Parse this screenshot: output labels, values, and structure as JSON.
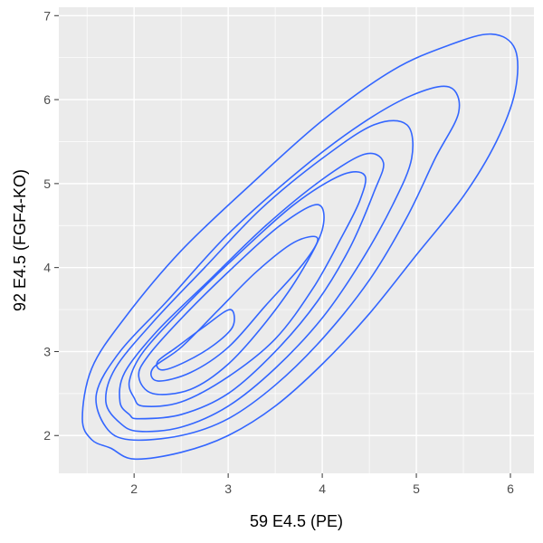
{
  "chart_data": {
    "type": "contour",
    "title": "",
    "xlabel": "59 E4.5 (PE)",
    "ylabel": "92 E4.5 (FGF4-KO)",
    "xlim": [
      1.2,
      6.25
    ],
    "ylim": [
      1.55,
      7.1
    ],
    "x_ticks": [
      2,
      3,
      4,
      5,
      6
    ],
    "y_ticks": [
      2,
      3,
      4,
      5,
      6,
      7
    ],
    "x_tick_labels": [
      "2",
      "3",
      "4",
      "5",
      "6"
    ],
    "y_tick_labels": [
      "2",
      "3",
      "4",
      "5",
      "6",
      "7"
    ],
    "grid": true,
    "legend": "none",
    "colors": {
      "panel": "#ebebeb",
      "grid": "#ffffff",
      "line": "#3366ff",
      "tick_text": "#4d4d4d",
      "title_text": "#000000"
    },
    "contours": [
      {
        "level": 1,
        "points": [
          [
            1.75,
            1.85
          ],
          [
            2.0,
            1.72
          ],
          [
            2.5,
            1.8
          ],
          [
            3.0,
            2.0
          ],
          [
            3.5,
            2.35
          ],
          [
            4.0,
            2.85
          ],
          [
            4.5,
            3.45
          ],
          [
            5.0,
            4.15
          ],
          [
            5.5,
            4.85
          ],
          [
            5.85,
            5.5
          ],
          [
            6.05,
            6.1
          ],
          [
            6.05,
            6.6
          ],
          [
            5.8,
            6.78
          ],
          [
            5.35,
            6.65
          ],
          [
            4.75,
            6.35
          ],
          [
            4.0,
            5.75
          ],
          [
            3.25,
            5.0
          ],
          [
            2.5,
            4.2
          ],
          [
            1.9,
            3.4
          ],
          [
            1.55,
            2.8
          ],
          [
            1.45,
            2.2
          ],
          [
            1.55,
            1.95
          ]
        ]
      },
      {
        "level": 2,
        "points": [
          [
            1.95,
            1.95
          ],
          [
            2.5,
            2.0
          ],
          [
            3.0,
            2.2
          ],
          [
            3.5,
            2.6
          ],
          [
            4.0,
            3.15
          ],
          [
            4.5,
            3.85
          ],
          [
            4.9,
            4.6
          ],
          [
            5.2,
            5.3
          ],
          [
            5.45,
            5.85
          ],
          [
            5.35,
            6.15
          ],
          [
            4.95,
            6.05
          ],
          [
            4.4,
            5.7
          ],
          [
            3.75,
            5.15
          ],
          [
            3.0,
            4.4
          ],
          [
            2.35,
            3.6
          ],
          [
            1.85,
            3.0
          ],
          [
            1.6,
            2.5
          ],
          [
            1.7,
            2.1
          ]
        ]
      },
      {
        "level": 3,
        "points": [
          [
            2.05,
            2.05
          ],
          [
            2.5,
            2.1
          ],
          [
            3.0,
            2.35
          ],
          [
            3.5,
            2.8
          ],
          [
            4.0,
            3.4
          ],
          [
            4.4,
            4.05
          ],
          [
            4.75,
            4.75
          ],
          [
            4.95,
            5.3
          ],
          [
            4.9,
            5.7
          ],
          [
            4.55,
            5.7
          ],
          [
            4.0,
            5.3
          ],
          [
            3.35,
            4.7
          ],
          [
            2.75,
            4.0
          ],
          [
            2.2,
            3.35
          ],
          [
            1.8,
            2.8
          ],
          [
            1.7,
            2.4
          ],
          [
            1.85,
            2.15
          ]
        ]
      },
      {
        "level": 4,
        "points": [
          [
            2.05,
            2.2
          ],
          [
            2.5,
            2.25
          ],
          [
            3.0,
            2.5
          ],
          [
            3.5,
            3.0
          ],
          [
            3.95,
            3.6
          ],
          [
            4.3,
            4.25
          ],
          [
            4.55,
            4.9
          ],
          [
            4.65,
            5.25
          ],
          [
            4.45,
            5.35
          ],
          [
            4.0,
            5.05
          ],
          [
            3.4,
            4.5
          ],
          [
            2.8,
            3.85
          ],
          [
            2.25,
            3.25
          ],
          [
            1.9,
            2.75
          ],
          [
            1.85,
            2.4
          ],
          [
            1.95,
            2.25
          ]
        ]
      },
      {
        "level": 5,
        "points": [
          [
            2.1,
            2.35
          ],
          [
            2.5,
            2.4
          ],
          [
            3.0,
            2.7
          ],
          [
            3.5,
            3.15
          ],
          [
            3.9,
            3.75
          ],
          [
            4.2,
            4.35
          ],
          [
            4.4,
            4.8
          ],
          [
            4.45,
            5.1
          ],
          [
            4.2,
            5.1
          ],
          [
            3.7,
            4.75
          ],
          [
            3.1,
            4.15
          ],
          [
            2.55,
            3.55
          ],
          [
            2.1,
            3.0
          ],
          [
            1.95,
            2.65
          ],
          [
            2.0,
            2.45
          ]
        ]
      },
      {
        "level": 6,
        "points": [
          [
            2.2,
            2.5
          ],
          [
            2.6,
            2.55
          ],
          [
            3.0,
            2.85
          ],
          [
            3.4,
            3.35
          ],
          [
            3.75,
            3.9
          ],
          [
            4.0,
            4.45
          ],
          [
            3.95,
            4.75
          ],
          [
            3.55,
            4.5
          ],
          [
            3.05,
            4.0
          ],
          [
            2.55,
            3.45
          ],
          [
            2.15,
            2.95
          ],
          [
            2.05,
            2.7
          ]
        ]
      },
      {
        "level": 7,
        "points": [
          [
            2.25,
            2.65
          ],
          [
            2.6,
            2.75
          ],
          [
            3.0,
            3.05
          ],
          [
            3.4,
            3.55
          ],
          [
            3.8,
            4.05
          ],
          [
            3.95,
            4.35
          ],
          [
            3.7,
            4.3
          ],
          [
            3.3,
            3.95
          ],
          [
            2.9,
            3.5
          ],
          [
            2.5,
            3.05
          ],
          [
            2.2,
            2.8
          ]
        ]
      },
      {
        "level": 8,
        "points": [
          [
            2.3,
            2.78
          ],
          [
            2.55,
            2.88
          ],
          [
            2.85,
            3.08
          ],
          [
            3.05,
            3.3
          ],
          [
            3.02,
            3.5
          ],
          [
            2.75,
            3.3
          ],
          [
            2.45,
            3.05
          ],
          [
            2.25,
            2.88
          ]
        ]
      }
    ]
  }
}
